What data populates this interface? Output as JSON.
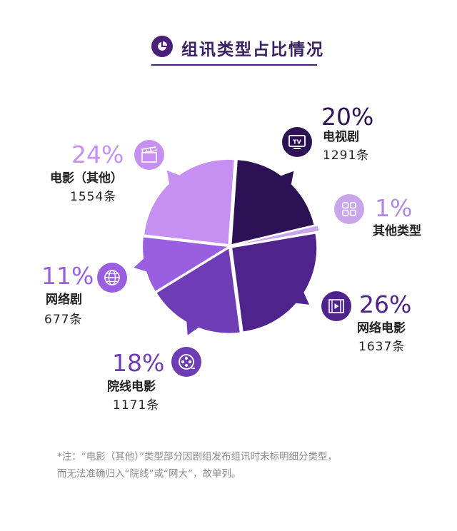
{
  "header": {
    "title": "组讯类型占比情况"
  },
  "chart_data": {
    "type": "pie",
    "title": "组讯类型占比情况",
    "slices": [
      {
        "name": "电视剧",
        "percent": "20%",
        "count": "1291条",
        "value": 1291,
        "color": "#2c1155"
      },
      {
        "name": "其他类型",
        "percent": "1%",
        "count": "",
        "value": 65,
        "color": "#c9a6ec"
      },
      {
        "name": "网络电影",
        "percent": "26%",
        "count": "1637条",
        "value": 1637,
        "color": "#4f238c"
      },
      {
        "name": "院线电影",
        "percent": "18%",
        "count": "1171条",
        "value": 1171,
        "color": "#6e3cb4"
      },
      {
        "name": "网络剧",
        "percent": "11%",
        "count": "677条",
        "value": 677,
        "color": "#9a5fe0"
      },
      {
        "name": "电影（其他）",
        "percent": "24%",
        "count": "1554条",
        "value": 1554,
        "color": "#c68ff2"
      }
    ]
  },
  "labels": {
    "tv": {
      "percent": "20%",
      "name": "电视剧",
      "count": "1291条",
      "icon": "tv-icon"
    },
    "other": {
      "percent": "1%",
      "name": "其他类型",
      "icon": "grid-icon"
    },
    "netmovie": {
      "percent": "26%",
      "name": "网络电影",
      "count": "1637条",
      "icon": "film-strip-icon"
    },
    "cinema": {
      "percent": "18%",
      "name": "院线电影",
      "count": "1171条",
      "icon": "film-reel-icon"
    },
    "netdrama": {
      "percent": "11%",
      "name": "网络剧",
      "count": "677条",
      "icon": "globe-icon"
    },
    "filmother": {
      "percent": "24%",
      "name": "电影（其他）",
      "count": "1554条",
      "icon": "clapperboard-icon"
    }
  },
  "footnote": {
    "line1": "*注：“电影（其他）”类型部分因剧组发布组讯时未标明细分类型，",
    "line2": "而无法准确归入“院线”或“网大”，故单列。"
  },
  "colors": {
    "title": "#3a2163",
    "tv": "#2c1155",
    "other": "#c9a6ec",
    "netmovie": "#4f238c",
    "cinema": "#6e3cb4",
    "netdrama": "#9a5fe0",
    "filmother": "#c68ff2"
  }
}
